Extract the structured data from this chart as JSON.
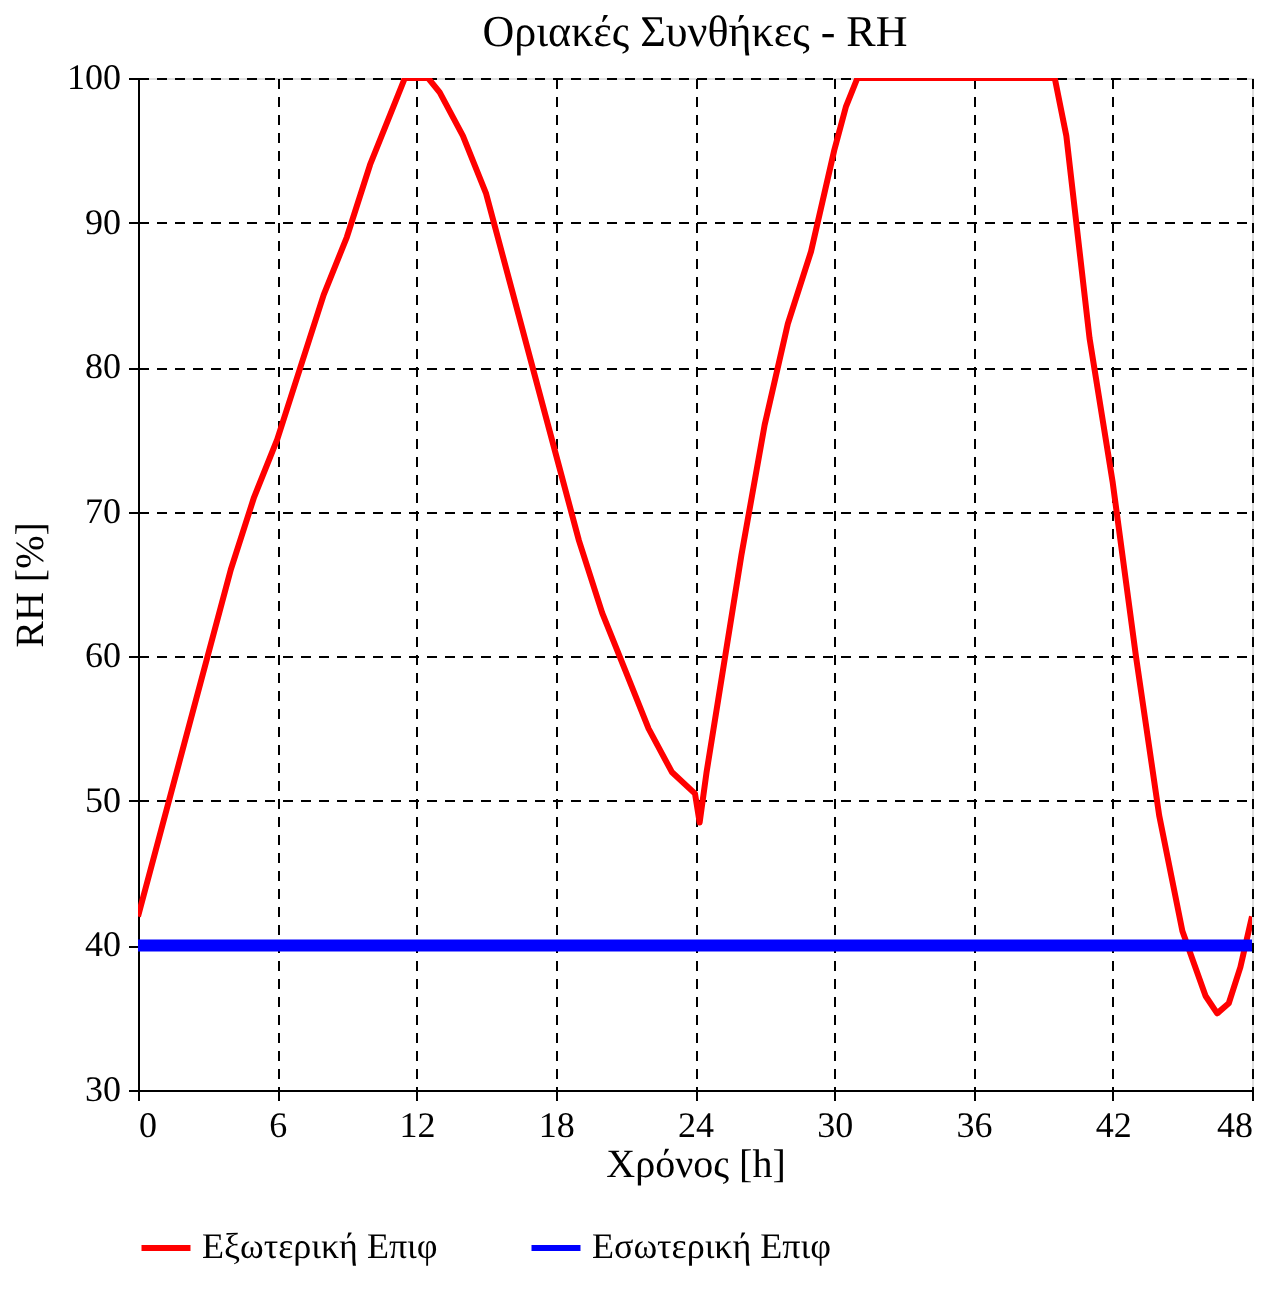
{
  "chart_data": {
    "type": "line",
    "title": "Οριακές Συνθήκες - RH",
    "xlabel": "Χρόνος [h]",
    "ylabel": "RH [%]",
    "xlim": [
      0,
      48
    ],
    "xticks": [
      0,
      6,
      12,
      18,
      24,
      30,
      36,
      42,
      48
    ],
    "ylim": [
      30,
      100
    ],
    "yticks": [
      30,
      40,
      50,
      60,
      70,
      80,
      90,
      100
    ],
    "grid": true,
    "legend": "bottom",
    "line_style": "solid",
    "marker": "none",
    "series": [
      {
        "name": "Εξωτερική Επιφ",
        "color": "#ff0000",
        "x": [
          0,
          1,
          2,
          3,
          4,
          5,
          6,
          7,
          8,
          9,
          10,
          11,
          11.5,
          12.5,
          13,
          14,
          15,
          16,
          17,
          18,
          19,
          20,
          21,
          22,
          23,
          24,
          24.2,
          24.5,
          25,
          26,
          27,
          28,
          29,
          30,
          30.5,
          31,
          39.5,
          40,
          41,
          42,
          43,
          44,
          45,
          46,
          46.5,
          47,
          47.5,
          48
        ],
        "values": [
          42,
          48,
          54,
          60,
          66,
          71,
          75,
          80,
          85,
          89,
          94,
          98,
          100,
          100,
          99,
          96,
          92,
          86,
          80,
          74,
          68,
          63,
          59,
          55,
          52,
          50.5,
          48.5,
          52,
          57,
          67,
          76,
          83,
          88,
          95,
          98,
          100,
          100,
          96,
          82,
          72,
          60,
          49,
          41,
          36.5,
          35.3,
          36,
          38.5,
          42
        ]
      },
      {
        "name": "Εσωτερική Επιφ",
        "color": "#0000ff",
        "x": [
          0,
          48
        ],
        "values": [
          40,
          40
        ]
      }
    ]
  }
}
